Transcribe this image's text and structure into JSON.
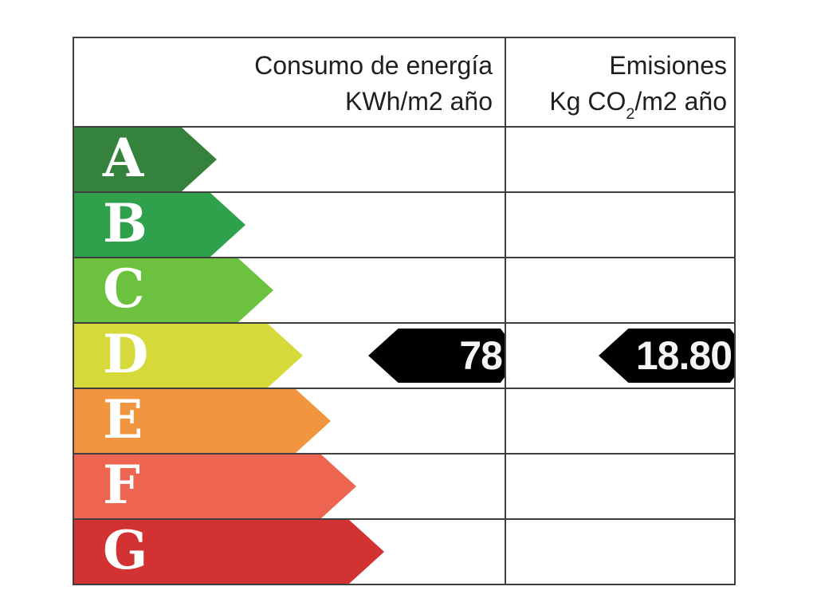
{
  "chart_data": {
    "type": "table",
    "description": "Spanish energy efficiency rating label with A-G arrow scale and two indicator values at rating D",
    "columns": [
      {
        "line1": "Consumo de energía",
        "line2": "KWh/m2 año"
      },
      {
        "line1": "Emisiones",
        "line2_pre": "Kg CO",
        "line2_sub": "2",
        "line2_post": "/m2 año"
      }
    ],
    "ratings": [
      {
        "letter": "A",
        "color": "#35823c"
      },
      {
        "letter": "B",
        "color": "#2fa14c"
      },
      {
        "letter": "C",
        "color": "#6cc13f"
      },
      {
        "letter": "D",
        "color": "#d6d93a"
      },
      {
        "letter": "E",
        "color": "#f1953f"
      },
      {
        "letter": "F",
        "color": "#ed6550"
      },
      {
        "letter": "G",
        "color": "#d23231"
      }
    ],
    "indicators": [
      {
        "column": "consumo",
        "rating": "D",
        "value": "78"
      },
      {
        "column": "emisiones",
        "rating": "D",
        "value": "18.80"
      }
    ],
    "indicator_color": "#000000",
    "grid_color": "#3f3f3f"
  }
}
